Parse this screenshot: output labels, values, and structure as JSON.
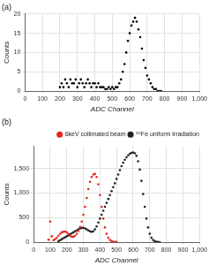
{
  "chart_data": [
    {
      "type": "scatter",
      "title": "(a)",
      "x_label": "ADC Channel",
      "y_label": "Counts",
      "xlim": [
        0,
        1000
      ],
      "xticks": [
        0,
        100,
        200,
        300,
        400,
        500,
        600,
        700,
        800,
        900,
        {
          "value": 1000,
          "label": "1,000"
        }
      ],
      "ylim": [
        0,
        20
      ],
      "yticks": [
        0,
        5,
        10,
        15,
        20
      ],
      "grid": true,
      "series": [
        {
          "color": "#000000",
          "marker": "circle",
          "x": [
            200,
            210,
            220,
            230,
            240,
            250,
            260,
            270,
            280,
            290,
            300,
            310,
            320,
            330,
            340,
            350,
            360,
            370,
            380,
            390,
            400,
            410,
            420,
            430,
            440,
            450,
            460,
            470,
            480,
            490,
            500,
            510,
            520,
            530,
            540,
            550,
            560,
            570,
            580,
            590,
            600,
            610,
            620,
            630,
            640,
            650,
            660,
            670,
            680,
            690,
            700,
            710,
            720,
            730,
            740,
            750,
            760,
            770,
            780
          ],
          "values": [
            1,
            2,
            1,
            3,
            2,
            1,
            3,
            2,
            2,
            3,
            1,
            2,
            3,
            2,
            1,
            2,
            3,
            2,
            1,
            2,
            2,
            1,
            2,
            1,
            1,
            1,
            0.5,
            0.5,
            1,
            0.5,
            1,
            0.5,
            1,
            1,
            2,
            3,
            5,
            7,
            10,
            13,
            15,
            17,
            18,
            19,
            18,
            16,
            14,
            11,
            8,
            6,
            4,
            3,
            2,
            1,
            0.5,
            0.5,
            0,
            0,
            0
          ]
        }
      ]
    },
    {
      "type": "scatter",
      "title": "(b)",
      "x_label": "ADC Channel",
      "y_label": "Counts",
      "xlim": [
        0,
        1000
      ],
      "xticks": [
        0,
        100,
        200,
        300,
        400,
        500,
        600,
        700,
        800,
        900,
        {
          "value": 1000,
          "label": "1,000"
        }
      ],
      "ylim": [
        0,
        1950
      ],
      "yticks": [
        0,
        500,
        {
          "value": 1000,
          "label": "1,000"
        },
        {
          "value": 1500,
          "label": "1,500"
        }
      ],
      "grid": true,
      "legend": "upper right",
      "series": [
        {
          "name": "6keV collimated beam",
          "color": "#e8261f",
          "marker": "circle",
          "x": [
            90,
            100,
            110,
            120,
            130,
            140,
            150,
            160,
            170,
            180,
            190,
            200,
            210,
            220,
            230,
            240,
            250,
            260,
            270,
            280,
            290,
            300,
            310,
            320,
            330,
            340,
            350,
            360,
            370,
            380,
            390,
            400,
            410,
            420,
            430,
            440,
            450,
            460,
            470,
            480,
            490,
            500
          ],
          "values": [
            50,
            420,
            120,
            40,
            60,
            90,
            130,
            170,
            200,
            210,
            215,
            200,
            170,
            130,
            110,
            110,
            130,
            170,
            230,
            310,
            420,
            560,
            720,
            900,
            1080,
            1230,
            1330,
            1380,
            1390,
            1330,
            1180,
            960,
            720,
            480,
            300,
            170,
            90,
            45,
            20,
            10,
            5,
            2
          ]
        },
        {
          "name": "⁵⁵Fe uniform irradiation",
          "color": "#222222",
          "marker": "circle",
          "x": [
            150,
            160,
            170,
            180,
            190,
            200,
            210,
            220,
            230,
            240,
            250,
            260,
            270,
            280,
            290,
            300,
            310,
            320,
            330,
            340,
            350,
            360,
            370,
            380,
            390,
            400,
            410,
            420,
            430,
            440,
            450,
            460,
            470,
            480,
            490,
            500,
            510,
            520,
            530,
            540,
            550,
            560,
            570,
            580,
            590,
            600,
            610,
            620,
            630,
            640,
            650,
            660,
            670,
            680,
            690,
            700,
            710,
            720,
            730,
            740,
            750,
            760
          ],
          "values": [
            20,
            40,
            60,
            80,
            100,
            120,
            140,
            160,
            180,
            200,
            220,
            240,
            260,
            280,
            290,
            290,
            280,
            260,
            240,
            220,
            210,
            220,
            260,
            320,
            400,
            480,
            560,
            640,
            720,
            800,
            880,
            960,
            1040,
            1120,
            1200,
            1290,
            1380,
            1470,
            1550,
            1620,
            1680,
            1730,
            1770,
            1800,
            1820,
            1830,
            1810,
            1760,
            1650,
            1480,
            1250,
            980,
            720,
            480,
            300,
            170,
            90,
            45,
            20,
            8,
            3,
            1
          ]
        }
      ]
    }
  ]
}
